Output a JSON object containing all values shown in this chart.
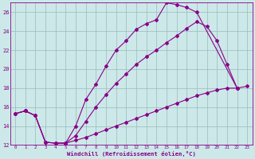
{
  "xlabel": "Windchill (Refroidissement éolien,°C)",
  "bg_color": "#cce8e8",
  "line_color": "#880088",
  "grid_color": "#99bbbb",
  "xlim": [
    -0.5,
    23.5
  ],
  "ylim": [
    12,
    27
  ],
  "yticks": [
    12,
    14,
    16,
    18,
    20,
    22,
    24,
    26
  ],
  "xticks": [
    0,
    1,
    2,
    3,
    4,
    5,
    6,
    7,
    8,
    9,
    10,
    11,
    12,
    13,
    14,
    15,
    16,
    17,
    18,
    19,
    20,
    21,
    22,
    23
  ],
  "curve1_x": [
    0,
    1,
    2,
    3,
    4,
    5,
    6,
    7,
    8,
    9,
    10,
    11,
    12,
    13,
    14,
    15,
    16,
    17,
    18,
    22
  ],
  "curve1_y": [
    15.3,
    15.6,
    15.1,
    12.3,
    12.2,
    12.2,
    14.0,
    16.8,
    18.4,
    20.3,
    22.0,
    23.0,
    24.2,
    24.8,
    25.2,
    27.0,
    26.8,
    26.5,
    26.0,
    18.0
  ],
  "curve2_x": [
    0,
    1,
    2,
    3,
    4,
    5,
    6,
    7,
    8,
    9,
    10,
    11,
    12,
    13,
    14,
    15,
    16,
    17,
    18,
    19,
    20,
    21,
    22
  ],
  "curve2_y": [
    15.3,
    15.6,
    15.1,
    12.3,
    12.2,
    12.2,
    13.0,
    14.5,
    16.0,
    17.3,
    18.5,
    19.5,
    20.5,
    21.3,
    22.0,
    22.8,
    23.5,
    24.3,
    25.0,
    24.5,
    23.0,
    20.5,
    18.0
  ],
  "curve3_x": [
    0,
    1,
    2,
    3,
    4,
    5,
    6,
    7,
    8,
    9,
    10,
    11,
    12,
    13,
    14,
    15,
    16,
    17,
    18,
    19,
    20,
    21,
    22,
    23
  ],
  "curve3_y": [
    15.3,
    15.6,
    15.1,
    12.3,
    12.2,
    12.2,
    12.5,
    12.8,
    13.2,
    13.6,
    14.0,
    14.4,
    14.8,
    15.2,
    15.6,
    16.0,
    16.4,
    16.8,
    17.2,
    17.5,
    17.8,
    18.0,
    18.0,
    18.2
  ]
}
